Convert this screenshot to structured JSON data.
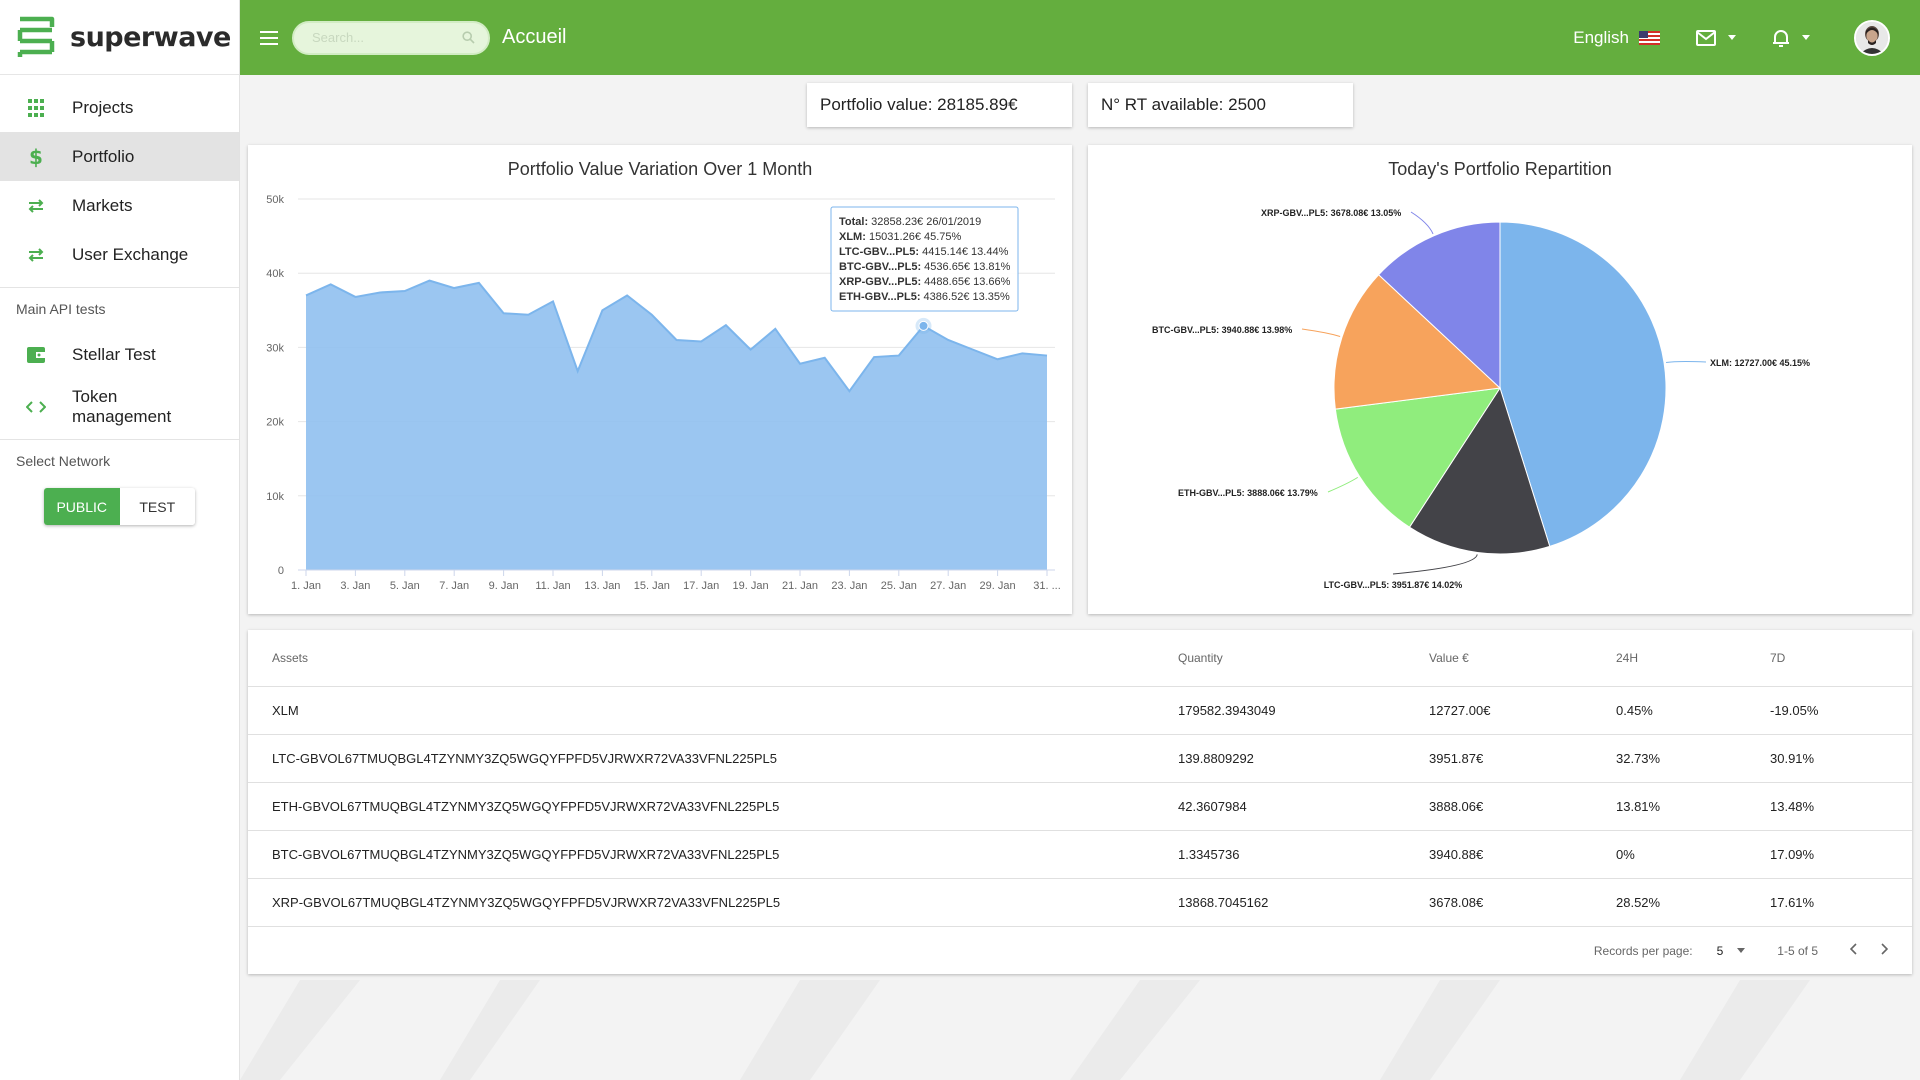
{
  "app": {
    "brand": "superwave"
  },
  "header": {
    "search_placeholder": "Search...",
    "page_title": "Accueil",
    "language": "English"
  },
  "sidebar": {
    "items": [
      {
        "label": "Projects",
        "icon": "grid-icon"
      },
      {
        "label": "Portfolio",
        "icon": "dollar-icon",
        "active": true
      },
      {
        "label": "Markets",
        "icon": "exchange-icon"
      },
      {
        "label": "User Exchange",
        "icon": "exchange-icon"
      }
    ],
    "api_section_title": "Main API tests",
    "api_items": [
      {
        "label": "Stellar Test",
        "icon": "wallet-icon"
      },
      {
        "label": "Token management",
        "icon": "code-icon"
      }
    ],
    "network_title": "Select Network",
    "network_options": [
      "PUBLIC",
      "TEST"
    ],
    "network_selected": "PUBLIC"
  },
  "stats": {
    "portfolio_value": "Portfolio value: 28185.89€",
    "rt_available": "N° RT available: 2500"
  },
  "colors": {
    "header_green": "#64ae3e",
    "toggle_green": "#4caf50",
    "area_blue": "#90c0ef",
    "pie": [
      "#7cb5ec",
      "#434348",
      "#90ed7d",
      "#f7a35c",
      "#8085e9"
    ]
  },
  "chart_data": [
    {
      "type": "area",
      "title": "Portfolio Value Variation Over 1 Month",
      "x_ticks": [
        "1. Jan",
        "3. Jan",
        "5. Jan",
        "7. Jan",
        "9. Jan",
        "11. Jan",
        "13. Jan",
        "15. Jan",
        "17. Jan",
        "19. Jan",
        "21. Jan",
        "23. Jan",
        "25. Jan",
        "27. Jan",
        "29. Jan",
        "31. ..."
      ],
      "y_ticks": [
        "0",
        "10k",
        "20k",
        "30k",
        "40k",
        "50k"
      ],
      "ylim": [
        0,
        50000
      ],
      "x": [
        1,
        2,
        3,
        4,
        5,
        6,
        7,
        8,
        9,
        10,
        11,
        12,
        13,
        14,
        15,
        16,
        17,
        18,
        19,
        20,
        21,
        22,
        23,
        24,
        25,
        26,
        27,
        28,
        29,
        30,
        31
      ],
      "values": [
        37000,
        38500,
        36800,
        37400,
        37600,
        39000,
        38000,
        38700,
        34600,
        34400,
        36200,
        26800,
        35000,
        37000,
        34400,
        31000,
        30800,
        33000,
        29700,
        32500,
        27800,
        28600,
        24100,
        28700,
        28900,
        32900,
        31000,
        29700,
        28400,
        29200,
        28900
      ],
      "tooltip": {
        "total_label": "Total:",
        "total_value": "32858.23€ 26/01/2019",
        "rows": [
          {
            "label": "XLM:",
            "value": "15031.26€ 45.75%"
          },
          {
            "label": "LTC-GBV...PL5:",
            "value": "4415.14€ 13.44%"
          },
          {
            "label": "BTC-GBV...PL5:",
            "value": "4536.65€ 13.81%"
          },
          {
            "label": "XRP-GBV...PL5:",
            "value": "4488.65€ 13.66%"
          },
          {
            "label": "ETH-GBV...PL5:",
            "value": "4386.52€ 13.35%"
          }
        ]
      }
    },
    {
      "type": "pie",
      "title": "Today's Portfolio Repartition",
      "slices": [
        {
          "name": "XLM",
          "value": 45.15,
          "label": "XLM: 12727.00€ 45.15%"
        },
        {
          "name": "LTC-GBV...PL5",
          "value": 14.02,
          "label": "LTC-GBV...PL5: 3951.87€ 14.02%"
        },
        {
          "name": "ETH-GBV...PL5",
          "value": 13.79,
          "label": "ETH-GBV...PL5: 3888.06€ 13.79%"
        },
        {
          "name": "BTC-GBV...PL5",
          "value": 13.98,
          "label": "BTC-GBV...PL5: 3940.88€ 13.98%"
        },
        {
          "name": "XRP-GBV...PL5",
          "value": 13.05,
          "label": "XRP-GBV...PL5: 3678.08€ 13.05%"
        }
      ]
    }
  ],
  "table": {
    "headers": [
      "Assets",
      "Quantity",
      "Value €",
      "24H",
      "7D"
    ],
    "rows": [
      [
        "XLM",
        "179582.3943049",
        "12727.00€",
        "0.45%",
        "-19.05%"
      ],
      [
        "LTC-GBVOL67TMUQBGL4TZYNMY3ZQ5WGQYFPFD5VJRWXR72VA33VFNL225PL5",
        "139.8809292",
        "3951.87€",
        "32.73%",
        "30.91%"
      ],
      [
        "ETH-GBVOL67TMUQBGL4TZYNMY3ZQ5WGQYFPFD5VJRWXR72VA33VFNL225PL5",
        "42.3607984",
        "3888.06€",
        "13.81%",
        "13.48%"
      ],
      [
        "BTC-GBVOL67TMUQBGL4TZYNMY3ZQ5WGQYFPFD5VJRWXR72VA33VFNL225PL5",
        "1.3345736",
        "3940.88€",
        "0%",
        "17.09%"
      ],
      [
        "XRP-GBVOL67TMUQBGL4TZYNMY3ZQ5WGQYFPFD5VJRWXR72VA33VFNL225PL5",
        "13868.7045162",
        "3678.08€",
        "28.52%",
        "17.61%"
      ]
    ],
    "pager": {
      "records_label": "Records per page:",
      "per_page": "5",
      "range": "1-5 of 5"
    }
  }
}
